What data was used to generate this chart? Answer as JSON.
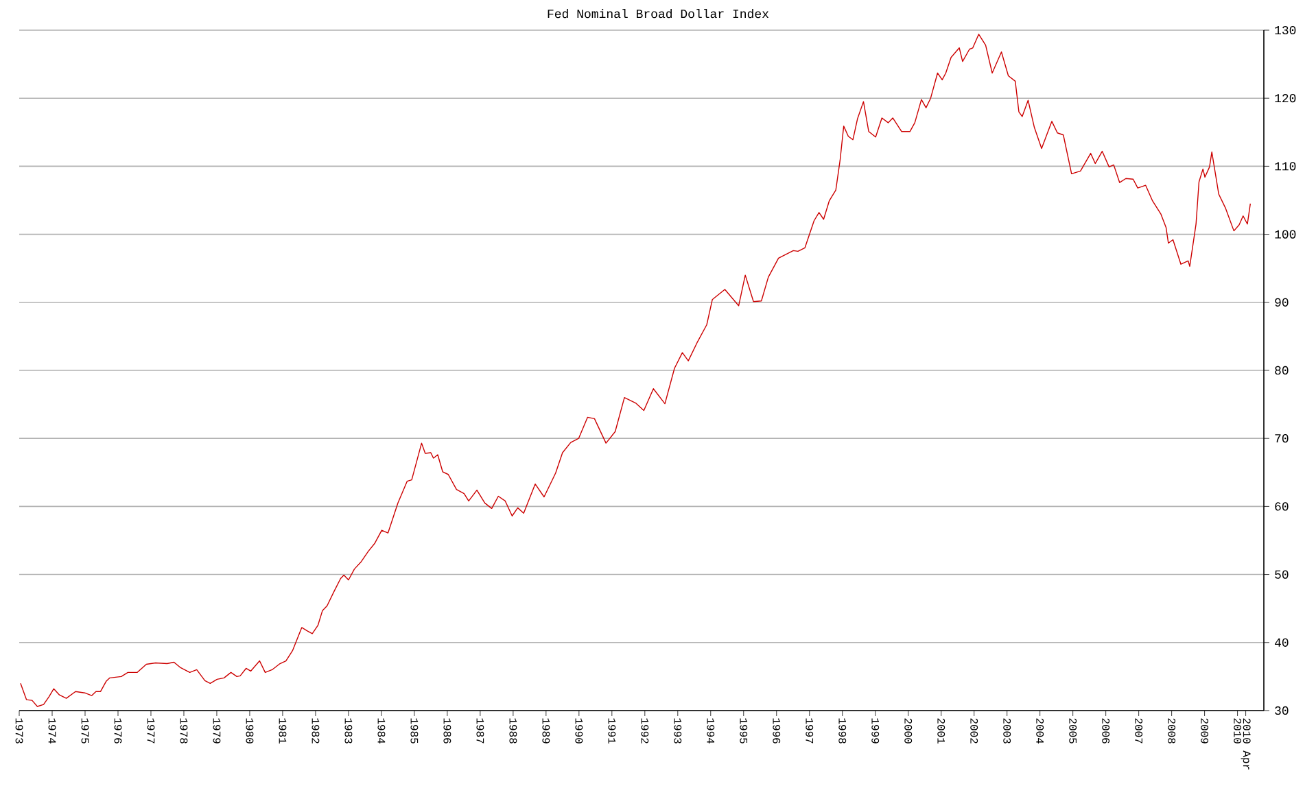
{
  "chart_data": {
    "type": "line",
    "title": "Fed Nominal Broad Dollar Index",
    "x": [
      1973.04,
      1973.22,
      1973.39,
      1973.55,
      1973.74,
      1973.9,
      1974.05,
      1974.22,
      1974.43,
      1974.71,
      1974.99,
      1975.2,
      1975.33,
      1975.47,
      1975.64,
      1975.75,
      1976.1,
      1976.3,
      1976.58,
      1976.86,
      1977.14,
      1977.49,
      1977.7,
      1977.9,
      1978.18,
      1978.39,
      1978.64,
      1978.8,
      1979.01,
      1979.22,
      1979.43,
      1979.61,
      1979.71,
      1979.89,
      1980.03,
      1980.3,
      1980.47,
      1980.68,
      1980.92,
      1981.1,
      1981.3,
      1981.58,
      1981.75,
      1981.9,
      1982.07,
      1982.21,
      1982.35,
      1982.55,
      1982.76,
      1982.86,
      1983.0,
      1983.18,
      1983.39,
      1983.6,
      1983.8,
      1984.01,
      1984.2,
      1984.5,
      1984.78,
      1984.92,
      1985.22,
      1985.33,
      1985.5,
      1985.58,
      1985.71,
      1985.86,
      1986.03,
      1986.28,
      1986.51,
      1986.65,
      1986.9,
      1987.14,
      1987.35,
      1987.55,
      1987.76,
      1987.97,
      1988.14,
      1988.32,
      1988.67,
      1988.94,
      1989.29,
      1989.5,
      1989.75,
      1989.99,
      1990.26,
      1990.47,
      1990.82,
      1991.1,
      1991.38,
      1991.72,
      1991.97,
      1992.26,
      1992.61,
      1992.9,
      1993.14,
      1993.32,
      1993.6,
      1993.88,
      1994.05,
      1994.43,
      1994.85,
      1995.05,
      1995.3,
      1995.54,
      1995.75,
      1996.06,
      1996.51,
      1996.65,
      1996.86,
      1997.14,
      1997.29,
      1997.43,
      1997.6,
      1997.8,
      1997.93,
      1998.04,
      1998.18,
      1998.32,
      1998.46,
      1998.64,
      1998.8,
      1999.01,
      1999.2,
      1999.39,
      1999.53,
      1999.8,
      2000.05,
      2000.2,
      2000.4,
      2000.54,
      2000.68,
      2000.89,
      2001.03,
      2001.14,
      2001.3,
      2001.55,
      2001.65,
      2001.86,
      2001.96,
      2002.14,
      2002.35,
      2002.55,
      2002.83,
      2003.04,
      2003.25,
      2003.36,
      2003.46,
      2003.64,
      2003.83,
      2004.05,
      2004.36,
      2004.53,
      2004.71,
      2004.96,
      2005.23,
      2005.54,
      2005.68,
      2005.89,
      2006.1,
      2006.24,
      2006.42,
      2006.61,
      2006.83,
      2006.97,
      2007.21,
      2007.42,
      2007.67,
      2007.83,
      2007.9,
      2008.04,
      2008.28,
      2008.5,
      2008.55,
      2008.74,
      2008.83,
      2008.95,
      2009.01,
      2009.15,
      2009.22,
      2009.43,
      2009.64,
      2009.89,
      2010.05,
      2010.17,
      2010.3,
      2010.39
    ],
    "values": [
      34.0,
      31.6,
      31.5,
      30.6,
      30.9,
      32.0,
      33.2,
      32.3,
      31.8,
      32.8,
      32.6,
      32.2,
      32.8,
      32.8,
      34.3,
      34.8,
      35.0,
      35.6,
      35.6,
      36.8,
      37.0,
      36.9,
      37.1,
      36.3,
      35.6,
      36.0,
      34.4,
      34.0,
      34.6,
      34.8,
      35.6,
      35.0,
      35.1,
      36.2,
      35.8,
      37.3,
      35.6,
      36.0,
      36.9,
      37.3,
      38.8,
      42.2,
      41.7,
      41.3,
      42.5,
      44.7,
      45.4,
      47.4,
      49.4,
      49.9,
      49.2,
      50.8,
      51.9,
      53.4,
      54.6,
      56.5,
      56.1,
      60.5,
      63.7,
      63.9,
      69.3,
      67.8,
      67.9,
      67.1,
      67.6,
      65.1,
      64.7,
      62.5,
      61.9,
      60.8,
      62.4,
      60.5,
      59.7,
      61.5,
      60.8,
      58.6,
      59.8,
      59.0,
      63.3,
      61.4,
      64.9,
      67.9,
      69.4,
      70.0,
      73.1,
      72.9,
      69.3,
      71.0,
      76.0,
      75.2,
      74.1,
      77.3,
      75.1,
      80.3,
      82.6,
      81.4,
      84.2,
      86.7,
      90.4,
      91.9,
      89.5,
      94.0,
      90.1,
      90.2,
      93.7,
      96.5,
      97.6,
      97.5,
      98.0,
      102.0,
      103.2,
      102.2,
      104.9,
      106.5,
      110.9,
      115.9,
      114.4,
      113.9,
      117.0,
      119.5,
      115.1,
      114.3,
      117.1,
      116.4,
      117.1,
      115.1,
      115.1,
      116.4,
      119.8,
      118.6,
      120.0,
      123.7,
      122.7,
      123.7,
      126.0,
      127.4,
      125.4,
      127.2,
      127.4,
      129.4,
      127.8,
      123.7,
      126.8,
      123.3,
      122.5,
      118.0,
      117.3,
      119.7,
      115.7,
      112.6,
      116.6,
      114.9,
      114.6,
      108.9,
      109.3,
      111.9,
      110.4,
      112.2,
      109.9,
      110.2,
      107.6,
      108.2,
      108.1,
      106.8,
      107.2,
      104.9,
      103.0,
      101.0,
      98.7,
      99.2,
      95.6,
      96.1,
      95.3,
      101.5,
      107.7,
      109.6,
      108.4,
      109.9,
      112.1,
      105.9,
      103.8,
      100.5,
      101.4,
      102.7,
      101.5,
      104.5
    ],
    "color": "#cc0000",
    "xlim": [
      1973,
      2010.8
    ],
    "xticks": [
      1973,
      1974,
      1975,
      1976,
      1977,
      1978,
      1979,
      1980,
      1981,
      1982,
      1983,
      1984,
      1985,
      1986,
      1987,
      1988,
      1989,
      1990,
      1991,
      1992,
      1993,
      1994,
      1995,
      1996,
      1997,
      1998,
      1999,
      2000,
      2001,
      2002,
      2003,
      2004,
      2005,
      2006,
      2007,
      2008,
      2009,
      2010,
      {
        "value": 2010.25,
        "label": "2010 Apr"
      }
    ],
    "ylim": [
      30,
      130
    ],
    "yticks": [
      30,
      40,
      50,
      60,
      70,
      80,
      90,
      100,
      110,
      120,
      130
    ],
    "grid": "y"
  }
}
